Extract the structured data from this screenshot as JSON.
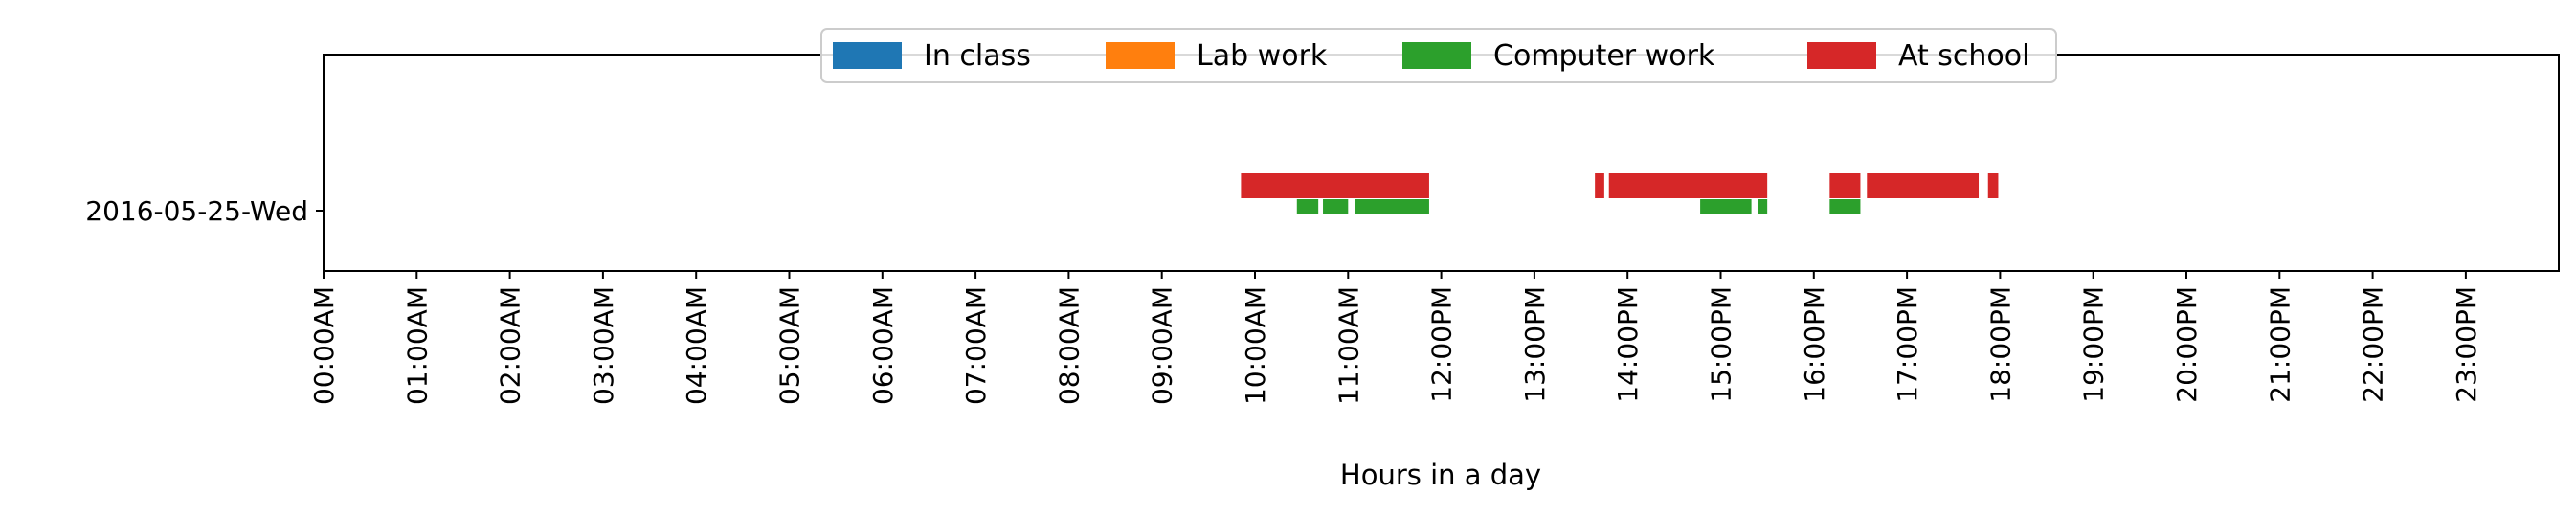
{
  "chart_data": {
    "type": "bar",
    "subtype": "horizontal-timeline",
    "title": "",
    "xlabel": "Hours in a day",
    "ylabel": "",
    "xlim": [
      0,
      24
    ],
    "grid": false,
    "legend_placement": "top-center",
    "categories": [
      "2016-05-25-Wed"
    ],
    "x_tick_labels": [
      "00:00AM",
      "01:00AM",
      "02:00AM",
      "03:00AM",
      "04:00AM",
      "05:00AM",
      "06:00AM",
      "07:00AM",
      "08:00AM",
      "09:00AM",
      "10:00AM",
      "11:00AM",
      "12:00PM",
      "13:00PM",
      "14:00PM",
      "15:00PM",
      "16:00PM",
      "17:00PM",
      "18:00PM",
      "19:00PM",
      "20:00PM",
      "21:00PM",
      "22:00PM",
      "23:00PM"
    ],
    "series": [
      {
        "name": "In class",
        "color": "#1f77b4",
        "intervals": []
      },
      {
        "name": "Lab work",
        "color": "#ff7f0e",
        "intervals": []
      },
      {
        "name": "Computer work",
        "color": "#2ca02c",
        "intervals": [
          [
            10.45,
            10.68
          ],
          [
            10.73,
            11.0
          ],
          [
            11.07,
            11.87
          ],
          [
            14.78,
            15.33
          ],
          [
            15.4,
            15.5
          ],
          [
            16.17,
            16.5
          ]
        ]
      },
      {
        "name": "At school",
        "color": "#d62728",
        "intervals": [
          [
            9.85,
            11.87
          ],
          [
            13.65,
            13.75
          ],
          [
            13.8,
            15.5
          ],
          [
            16.17,
            16.5
          ],
          [
            16.57,
            17.77
          ],
          [
            17.87,
            17.98
          ]
        ]
      }
    ]
  }
}
